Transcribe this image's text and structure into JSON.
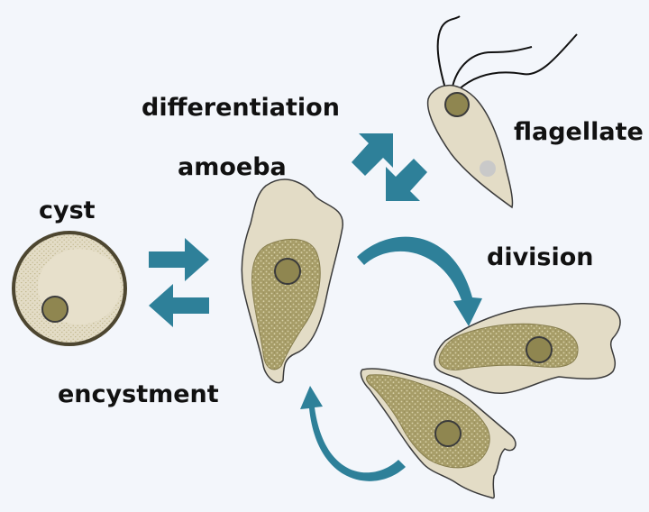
{
  "labels": {
    "differentiation": "differentiation",
    "flagellate": "flagellate",
    "amoeba": "amoeba",
    "cyst": "cyst",
    "division": "division",
    "encystment": "encystment"
  },
  "colors": {
    "background": "#f3f6fb",
    "cell_body": "#e3dcc6",
    "cell_outline": "#3b3b3b",
    "cytoplasm": "#a79d68",
    "nucleus": "#8f8650",
    "arrow": "#2e8099",
    "cyst_wall": "#4d4630",
    "vacuole": "#c9c9c9"
  },
  "icons": {
    "transition_arrows": "block-arrow",
    "cycle_arrows": "curved-arrow"
  }
}
